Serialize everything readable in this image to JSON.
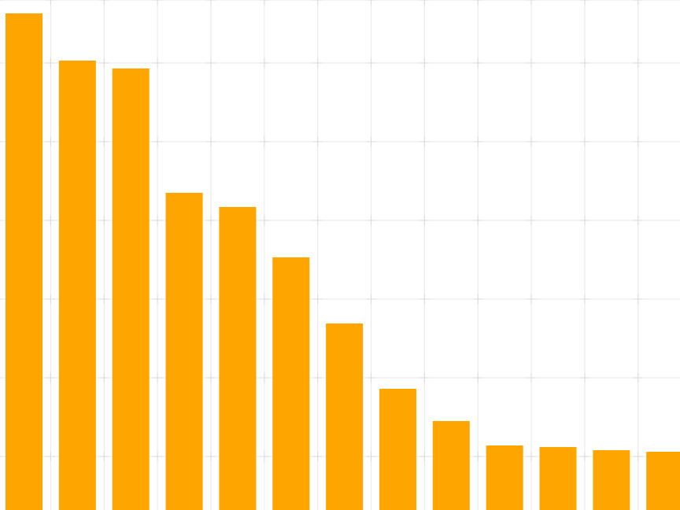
{
  "chart_data": {
    "type": "bar",
    "title": "",
    "xlabel": "",
    "ylabel": "",
    "grid": true,
    "legend": "none",
    "categories": [
      "",
      "",
      "",
      "",
      "",
      "",
      "",
      "",
      "",
      "",
      "",
      "",
      ""
    ],
    "values": [
      631,
      571,
      561,
      403,
      385,
      321,
      237,
      154,
      113,
      82,
      80,
      76,
      74
    ],
    "ylim": [
      0,
      648
    ],
    "colors": {
      "bar": "#ffa500",
      "grid": "#e8e8e8",
      "background": "#ffffff"
    }
  }
}
